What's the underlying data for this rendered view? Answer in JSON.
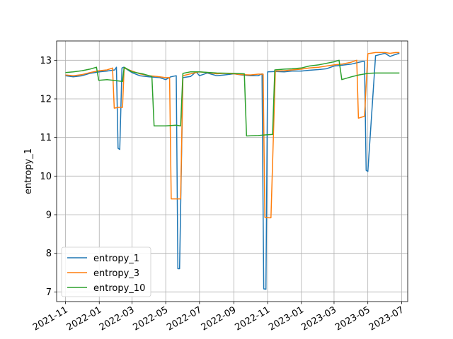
{
  "chart_data": {
    "type": "line",
    "title": "",
    "xlabel": "",
    "ylabel": "entropy_1",
    "ylim": [
      6.75,
      13.5
    ],
    "xlim": [
      "2021-10-16",
      "2023-07-12"
    ],
    "grid": true,
    "legend_position": "lower-left",
    "yticks": [
      7,
      8,
      9,
      10,
      11,
      12,
      13
    ],
    "xticks": [
      "2021-11-01",
      "2022-01-01",
      "2022-03-01",
      "2022-05-01",
      "2022-07-01",
      "2022-09-01",
      "2022-11-01",
      "2023-01-01",
      "2023-03-01",
      "2023-05-01",
      "2023-07-01"
    ],
    "xtick_labels": [
      "2021-11",
      "2022-01",
      "2022-03",
      "2022-05",
      "2022-07",
      "2022-09",
      "2022-11",
      "2023-01",
      "2023-03",
      "2023-05",
      "2023-07"
    ],
    "series": [
      {
        "name": "entropy_1",
        "color": "#1f77b4",
        "x": [
          "2021-11-01",
          "2021-11-15",
          "2021-12-01",
          "2021-12-15",
          "2022-01-01",
          "2022-01-15",
          "2022-01-29",
          "2022-02-01",
          "2022-02-04",
          "2022-02-07",
          "2022-02-11",
          "2022-02-14",
          "2022-03-01",
          "2022-03-15",
          "2022-04-01",
          "2022-04-20",
          "2022-05-01",
          "2022-05-10",
          "2022-05-20",
          "2022-05-23",
          "2022-05-26",
          "2022-06-01",
          "2022-06-15",
          "2022-06-25",
          "2022-07-01",
          "2022-07-15",
          "2022-08-01",
          "2022-08-15",
          "2022-09-01",
          "2022-09-15",
          "2022-10-01",
          "2022-10-15",
          "2022-10-22",
          "2022-10-25",
          "2022-10-29",
          "2022-11-01",
          "2022-11-15",
          "2022-12-01",
          "2022-12-15",
          "2023-01-01",
          "2023-01-15",
          "2023-02-01",
          "2023-02-15",
          "2023-03-01",
          "2023-03-15",
          "2023-04-01",
          "2023-04-15",
          "2023-04-22",
          "2023-04-25",
          "2023-04-28",
          "2023-05-01",
          "2023-05-15",
          "2023-06-01",
          "2023-06-10",
          "2023-06-20",
          "2023-06-27"
        ],
        "values": [
          12.6,
          12.57,
          12.6,
          12.66,
          12.7,
          12.72,
          12.75,
          12.82,
          10.72,
          10.69,
          12.8,
          12.82,
          12.68,
          12.6,
          12.57,
          12.55,
          12.5,
          12.57,
          12.6,
          7.6,
          7.6,
          12.55,
          12.58,
          12.7,
          12.6,
          12.67,
          12.6,
          12.62,
          12.65,
          12.62,
          12.6,
          12.6,
          12.65,
          7.08,
          7.07,
          12.7,
          12.71,
          12.7,
          12.72,
          12.72,
          12.74,
          12.76,
          12.78,
          12.85,
          12.87,
          12.9,
          12.95,
          12.97,
          12.97,
          10.15,
          10.12,
          13.12,
          13.18,
          13.1,
          13.15,
          13.18
        ]
      },
      {
        "name": "entropy_3",
        "color": "#ff7f0e",
        "x": [
          "2021-11-01",
          "2021-11-15",
          "2021-12-01",
          "2021-12-15",
          "2022-01-01",
          "2022-01-15",
          "2022-01-25",
          "2022-01-28",
          "2022-02-05",
          "2022-02-12",
          "2022-02-15",
          "2022-03-01",
          "2022-03-15",
          "2022-04-01",
          "2022-04-15",
          "2022-05-01",
          "2022-05-08",
          "2022-05-11",
          "2022-05-20",
          "2022-05-28",
          "2022-06-01",
          "2022-06-15",
          "2022-07-01",
          "2022-07-15",
          "2022-08-01",
          "2022-08-15",
          "2022-09-01",
          "2022-09-15",
          "2022-10-01",
          "2022-10-15",
          "2022-10-24",
          "2022-10-27",
          "2022-11-04",
          "2022-11-07",
          "2022-11-15",
          "2022-12-01",
          "2022-12-15",
          "2023-01-01",
          "2023-01-15",
          "2023-02-01",
          "2023-02-15",
          "2023-03-01",
          "2023-03-15",
          "2023-04-01",
          "2023-04-11",
          "2023-04-14",
          "2023-04-25",
          "2023-05-01",
          "2023-05-15",
          "2023-06-01",
          "2023-06-10",
          "2023-06-20",
          "2023-06-27"
        ],
        "values": [
          12.62,
          12.6,
          12.63,
          12.68,
          12.73,
          12.75,
          12.8,
          11.76,
          11.78,
          11.78,
          12.8,
          12.72,
          12.65,
          12.6,
          12.58,
          12.55,
          12.55,
          9.41,
          9.41,
          9.41,
          12.6,
          12.65,
          12.7,
          12.68,
          12.65,
          12.66,
          12.65,
          12.63,
          12.62,
          12.64,
          12.64,
          8.93,
          8.92,
          8.92,
          12.72,
          12.73,
          12.75,
          12.77,
          12.8,
          12.82,
          12.85,
          12.88,
          12.9,
          12.95,
          13.0,
          11.5,
          11.55,
          13.17,
          13.2,
          13.2,
          13.18,
          13.2,
          13.2
        ]
      },
      {
        "name": "entropy_10",
        "color": "#2ca02c",
        "x": [
          "2021-11-01",
          "2021-11-15",
          "2021-12-01",
          "2021-12-15",
          "2021-12-27",
          "2021-12-31",
          "2022-01-15",
          "2022-02-01",
          "2022-02-12",
          "2022-02-15",
          "2022-03-01",
          "2022-03-20",
          "2022-04-06",
          "2022-04-10",
          "2022-05-01",
          "2022-05-20",
          "2022-05-28",
          "2022-06-01",
          "2022-06-15",
          "2022-07-01",
          "2022-08-01",
          "2022-09-01",
          "2022-09-20",
          "2022-09-24",
          "2022-10-15",
          "2022-11-01",
          "2022-11-10",
          "2022-11-14",
          "2022-12-01",
          "2022-12-15",
          "2023-01-01",
          "2023-01-15",
          "2023-02-01",
          "2023-02-15",
          "2023-03-01",
          "2023-03-10",
          "2023-03-15",
          "2023-04-01",
          "2023-04-15",
          "2023-05-01",
          "2023-05-15",
          "2023-06-01",
          "2023-06-15",
          "2023-06-27"
        ],
        "values": [
          12.68,
          12.7,
          12.73,
          12.77,
          12.82,
          12.48,
          12.5,
          12.47,
          12.45,
          12.82,
          12.7,
          12.65,
          12.58,
          11.3,
          11.3,
          11.32,
          11.3,
          12.66,
          12.7,
          12.7,
          12.67,
          12.66,
          12.65,
          11.04,
          11.05,
          11.07,
          11.08,
          12.75,
          12.77,
          12.78,
          12.8,
          12.85,
          12.88,
          12.92,
          12.96,
          13.0,
          12.5,
          12.57,
          12.62,
          12.66,
          12.67,
          12.67,
          12.67,
          12.67
        ]
      }
    ]
  }
}
